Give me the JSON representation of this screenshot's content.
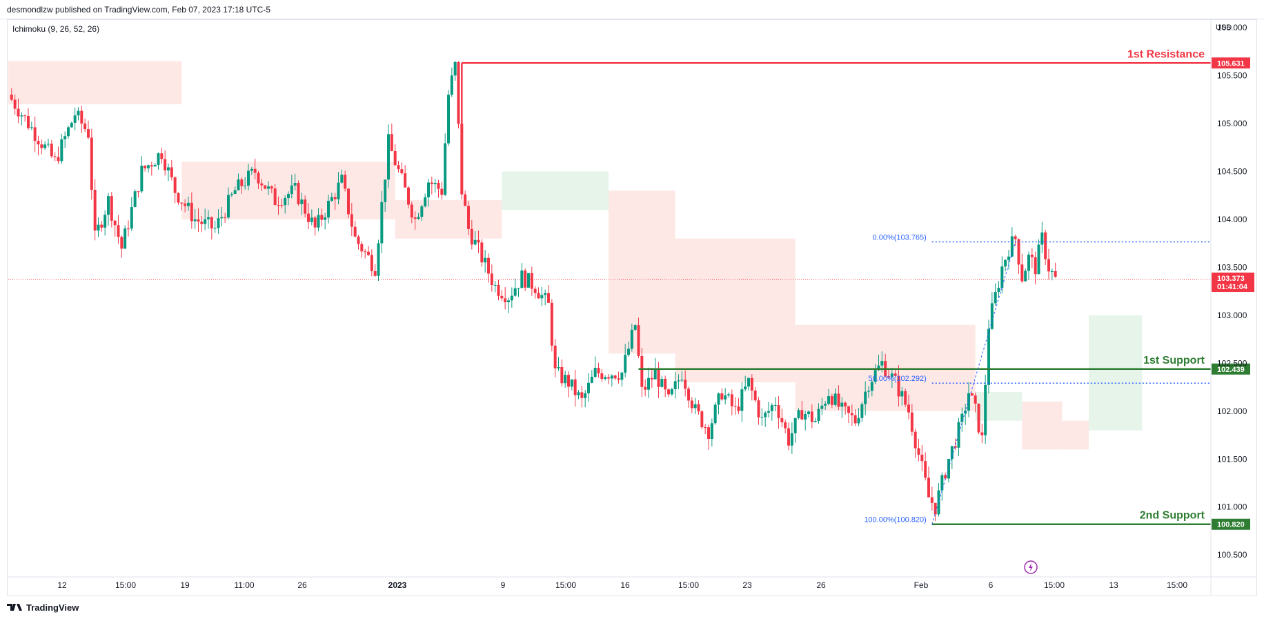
{
  "header": {
    "published": "desmondlzw published on TradingView.com, Feb 07, 2023 17:18 UTC-5",
    "indicator": "Ichimoku (9, 26, 52, 26)",
    "currency": "USD"
  },
  "footer": {
    "brand": "TradingView"
  },
  "colors": {
    "up": "#089981",
    "down": "#f23645",
    "resistance": "#f23645",
    "support": "#2e7d32",
    "fib": "#2962ff",
    "cloud_bear": "#fde8e6",
    "cloud_bull": "#e6f4ea",
    "lightning": "#9c27b0"
  },
  "chart_data": {
    "type": "candlestick",
    "symbol_currency": "USD",
    "ylim": [
      100.3,
      106.0
    ],
    "y_ticks": [
      "106.000",
      "105.500",
      "105.000",
      "104.500",
      "104.000",
      "103.500",
      "103.000",
      "102.500",
      "102.000",
      "101.500",
      "101.000",
      "100.500"
    ],
    "x_ticks": [
      "12",
      "15:00",
      "19",
      "11:00",
      "26",
      "2023",
      "9",
      "15:00",
      "16",
      "15:00",
      "23",
      "26",
      "Feb",
      "6",
      "15:00",
      "13",
      "15:00"
    ],
    "last_price": {
      "value": "103.373",
      "countdown": "01:41:04"
    },
    "levels": [
      {
        "name": "1st Resistance",
        "value": 105.631,
        "tag": "105.631",
        "kind": "resistance"
      },
      {
        "name": "1st Support",
        "value": 102.439,
        "tag": "102.439",
        "kind": "support"
      },
      {
        "name": "2nd Support",
        "value": 100.82,
        "tag": "100.820",
        "kind": "support"
      }
    ],
    "fibonacci": [
      {
        "label": "0.00%(103.765)",
        "value": 103.765
      },
      {
        "label": "50.00%(102.292)",
        "value": 102.292
      },
      {
        "label": "100.00%(100.820)",
        "value": 100.82
      }
    ],
    "price_path": [
      [
        0,
        105.3
      ],
      [
        4,
        104.9
      ],
      [
        7,
        104.6
      ],
      [
        10,
        105.1
      ],
      [
        12,
        104.9
      ],
      [
        13,
        103.8
      ],
      [
        15,
        104.2
      ],
      [
        17,
        103.7
      ],
      [
        20,
        104.5
      ],
      [
        23,
        104.7
      ],
      [
        25,
        104.3
      ],
      [
        28,
        104.0
      ],
      [
        31,
        103.9
      ],
      [
        34,
        104.3
      ],
      [
        37,
        104.5
      ],
      [
        40,
        104.2
      ],
      [
        43,
        104.3
      ],
      [
        46,
        103.9
      ],
      [
        50,
        104.4
      ],
      [
        52,
        103.8
      ],
      [
        55,
        103.5
      ],
      [
        57,
        104.8
      ],
      [
        59,
        104.4
      ],
      [
        61,
        104.0
      ],
      [
        63,
        104.4
      ],
      [
        65,
        104.3
      ],
      [
        66,
        105.3
      ],
      [
        67,
        105.6
      ],
      [
        68,
        104.3
      ],
      [
        69,
        103.9
      ],
      [
        71,
        103.6
      ],
      [
        73,
        103.3
      ],
      [
        75,
        103.2
      ],
      [
        77,
        103.4
      ],
      [
        79,
        103.3
      ],
      [
        81,
        103.1
      ],
      [
        82,
        102.4
      ],
      [
        84,
        102.3
      ],
      [
        86,
        102.1
      ],
      [
        88,
        102.4
      ],
      [
        90,
        102.4
      ],
      [
        92,
        102.4
      ],
      [
        94,
        102.9
      ],
      [
        95,
        102.2
      ],
      [
        97,
        102.4
      ],
      [
        99,
        102.1
      ],
      [
        101,
        102.4
      ],
      [
        103,
        102.0
      ],
      [
        105,
        101.8
      ],
      [
        107,
        102.2
      ],
      [
        109,
        102.0
      ],
      [
        111,
        102.3
      ],
      [
        113,
        101.9
      ],
      [
        115,
        102.1
      ],
      [
        117,
        101.7
      ],
      [
        119,
        102.0
      ],
      [
        121,
        101.9
      ],
      [
        123,
        102.2
      ],
      [
        125,
        102.0
      ],
      [
        127,
        101.9
      ],
      [
        129,
        102.3
      ],
      [
        131,
        102.5
      ],
      [
        133,
        102.3
      ],
      [
        135,
        102.0
      ],
      [
        137,
        101.4
      ],
      [
        138,
        101.1
      ],
      [
        139,
        101.0
      ],
      [
        141,
        101.5
      ],
      [
        143,
        101.9
      ],
      [
        144,
        102.2
      ],
      [
        145,
        102.0
      ],
      [
        146,
        101.7
      ],
      [
        147,
        102.9
      ],
      [
        148,
        103.2
      ],
      [
        149,
        103.5
      ],
      [
        150,
        103.7
      ],
      [
        151,
        103.8
      ],
      [
        152,
        103.4
      ],
      [
        153,
        103.6
      ],
      [
        154,
        103.5
      ],
      [
        155,
        103.8
      ],
      [
        156,
        103.5
      ],
      [
        157,
        103.373
      ]
    ],
    "cloud_spans": [
      {
        "from": 0,
        "to": 26,
        "high": 105.65,
        "low": 105.2,
        "kind": "bear"
      },
      {
        "from": 26,
        "to": 58,
        "high": 104.6,
        "low": 104.0,
        "kind": "bear"
      },
      {
        "from": 58,
        "to": 74,
        "high": 104.2,
        "low": 103.8,
        "kind": "bear"
      },
      {
        "from": 74,
        "to": 90,
        "high": 104.5,
        "low": 104.1,
        "kind": "bull"
      },
      {
        "from": 90,
        "to": 100,
        "high": 104.3,
        "low": 102.6,
        "kind": "bear"
      },
      {
        "from": 100,
        "to": 118,
        "high": 103.8,
        "low": 102.3,
        "kind": "bear"
      },
      {
        "from": 118,
        "to": 145,
        "high": 102.9,
        "low": 102.0,
        "kind": "bear"
      },
      {
        "from": 145,
        "to": 152,
        "high": 102.2,
        "low": 101.9,
        "kind": "bull"
      },
      {
        "from": 152,
        "to": 158,
        "high": 102.1,
        "low": 101.6,
        "kind": "bear"
      },
      {
        "from": 158,
        "to": 162,
        "high": 101.9,
        "low": 101.6,
        "kind": "bear"
      },
      {
        "from": 162,
        "to": 170,
        "high": 103.0,
        "low": 101.8,
        "kind": "bull"
      }
    ],
    "x_max_index": 180
  }
}
